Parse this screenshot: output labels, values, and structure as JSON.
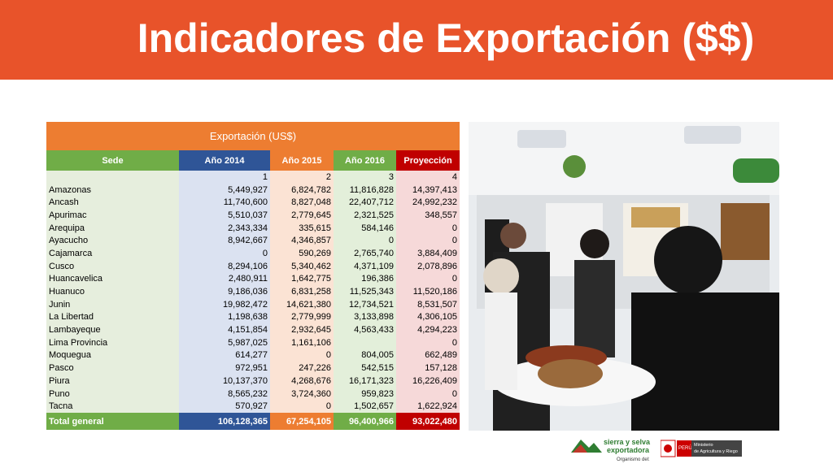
{
  "header": {
    "title": "Indicadores de Exportación ($$)"
  },
  "table": {
    "caption": "Exportación (US$)",
    "columns": [
      "Sede",
      "Año 2014",
      "Año 2015",
      "Año 2016",
      "Proyección"
    ],
    "index_row": [
      "1",
      "2",
      "3",
      "4"
    ],
    "rows": [
      [
        "Amazonas",
        "5,449,927",
        "6,824,782",
        "11,816,828",
        "14,397,413"
      ],
      [
        "Ancash",
        "11,740,600",
        "8,827,048",
        "22,407,712",
        "24,992,232"
      ],
      [
        "Apurimac",
        "5,510,037",
        "2,779,645",
        "2,321,525",
        "348,557"
      ],
      [
        "Arequipa",
        "2,343,334",
        "335,615",
        "584,146",
        "0"
      ],
      [
        "Ayacucho",
        "8,942,667",
        "4,346,857",
        "0",
        "0"
      ],
      [
        "Cajamarca",
        "0",
        "590,269",
        "2,765,740",
        "3,884,409"
      ],
      [
        "Cusco",
        "8,294,106",
        "5,340,462",
        "4,371,109",
        "2,078,896"
      ],
      [
        "Huancavelica",
        "2,480,911",
        "1,642,775",
        "196,386",
        "0"
      ],
      [
        "Huanuco",
        "9,186,036",
        "6,831,258",
        "11,525,343",
        "11,520,186"
      ],
      [
        "Junin",
        "19,982,472",
        "14,621,380",
        "12,734,521",
        "8,531,507"
      ],
      [
        "La Libertad",
        "1,198,638",
        "2,779,999",
        "3,133,898",
        "4,306,105"
      ],
      [
        "Lambayeque",
        "4,151,854",
        "2,932,645",
        "4,563,433",
        "4,294,223"
      ],
      [
        "Lima Provincia",
        "5,987,025",
        "1,161,106",
        null,
        "0"
      ],
      [
        "Moquegua",
        "614,277",
        "0",
        "804,005",
        "662,489"
      ],
      [
        "Pasco",
        "972,951",
        "247,226",
        "542,515",
        "157,128"
      ],
      [
        "Piura",
        "10,137,370",
        "4,268,676",
        "16,171,323",
        "16,226,409"
      ],
      [
        "Puno",
        "8,565,232",
        "3,724,360",
        "959,823",
        "0"
      ],
      [
        "Tacna",
        "570,927",
        "0",
        "1,502,657",
        "1,622,924"
      ]
    ],
    "total": [
      "Total general",
      "106,128,365",
      "67,254,105",
      "96,400,966",
      "93,022,480"
    ]
  },
  "footer": {
    "logo_line1": "sierra y selva",
    "logo_line2": "exportadora",
    "organism": "Organismo del:",
    "country": "PERÚ",
    "ministry_line1": "Ministerio",
    "ministry_line2": "de Agricultura y Riego"
  }
}
